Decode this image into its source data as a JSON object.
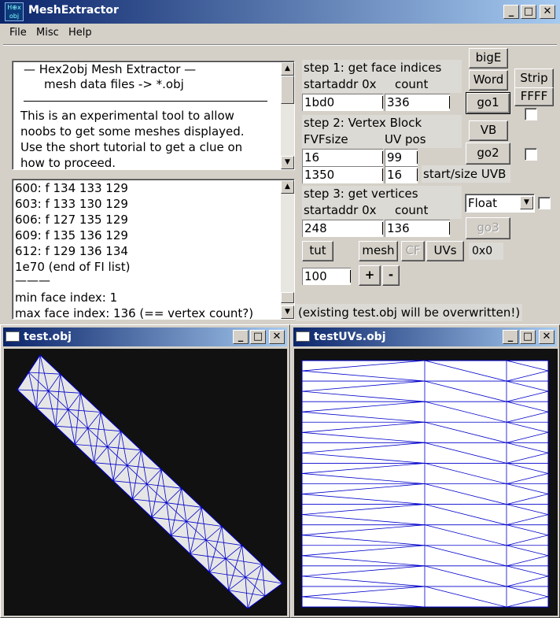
{
  "window": {
    "title": "MeshExtractor",
    "app_icon": "hex-obj-icon",
    "icon_text_top": "H⊕x",
    "icon_text_bottom": "obj"
  },
  "menu": [
    "File",
    "Misc",
    "Help"
  ],
  "info": {
    "heading": "—   Hex2obj Mesh Extractor   —",
    "subheading": "mesh data files -> *.obj",
    "lines": [
      "This is an experimental tool to allow",
      "noobs to get some meshes displayed.",
      "Use the short tutorial to get a clue on",
      "how to proceed."
    ]
  },
  "log": {
    "lines": [
      "600: f  134 133 129",
      "603: f  133 130 129",
      "606: f  127 135 129",
      "609: f  135 136 129",
      "612: f  129 136 134",
      "1e70 (end of FI list)",
      "———",
      "min face index: 1",
      "max face index: 136 (== vertex count?)"
    ]
  },
  "step1": {
    "title": "step 1: get face indices",
    "startaddr_label": "startaddr 0x",
    "count_label": "count",
    "startaddr": "1bd0",
    "count": "336",
    "go": "go1"
  },
  "step2": {
    "title": "step 2: Vertex Block",
    "fvf_label": "FVFsize",
    "uv_label": "UV pos",
    "fvf": "16",
    "uvpos": "99",
    "start": "1350",
    "size": "16",
    "start_size_label": "start/size UVB",
    "go": "go2",
    "vb": "VB"
  },
  "step3": {
    "title": "step 3: get vertices",
    "startaddr_label": "startaddr 0x",
    "count_label": "count",
    "startaddr": "248",
    "count": "136",
    "go": "go3",
    "format": "Float"
  },
  "buttons": {
    "bigE": "bigE",
    "word": "Word",
    "strip": "Strip",
    "ffff": "FFFF",
    "tut": "tut",
    "mesh": "mesh",
    "cf": "CF",
    "uvs": "UVs",
    "dims": "0x0",
    "plus": "+",
    "minus": "-"
  },
  "zoom": "100",
  "warning": "(existing test.obj will be overwritten!)",
  "sub1": {
    "title": "test.obj"
  },
  "sub2": {
    "title": "testUVs.obj"
  },
  "colors": {
    "mesh_stroke": "#0000cc",
    "mesh_fill": "#e6e6e6",
    "viewport_bg": "#111111"
  }
}
